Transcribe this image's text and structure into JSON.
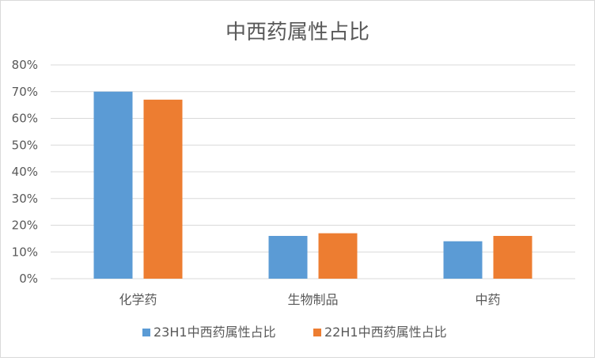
{
  "chart_data": {
    "type": "bar",
    "title": "中西药属性占比",
    "xlabel": "",
    "ylabel": "",
    "categories": [
      "化学药",
      "生物制品",
      "中药"
    ],
    "series": [
      {
        "name": "23H1中西药属性占比",
        "values": [
          0.7,
          0.16,
          0.14
        ],
        "color": "#5b9bd5"
      },
      {
        "name": "22H1中西药属性占比",
        "values": [
          0.67,
          0.17,
          0.16
        ],
        "color": "#ed7d31"
      }
    ],
    "ylim": [
      0,
      0.8
    ],
    "yticks": [
      "0%",
      "10%",
      "20%",
      "30%",
      "40%",
      "50%",
      "60%",
      "70%",
      "80%"
    ],
    "grid": true,
    "legend_position": "bottom"
  }
}
